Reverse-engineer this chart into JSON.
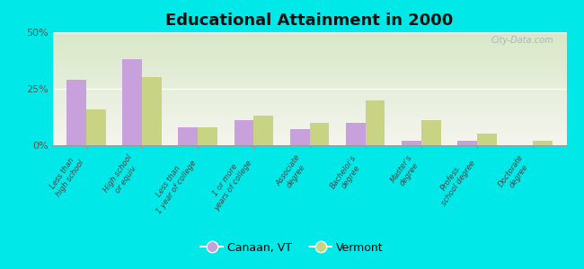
{
  "title": "Educational Attainment in 2000",
  "categories": [
    "Less than\nhigh school",
    "High school\nor equiv.",
    "Less than\n1 year of college",
    "1 or more\nyears of college",
    "Associate\ndegree",
    "Bachelor's\ndegree",
    "Master's\ndegree",
    "Profess.\nschool degree",
    "Doctorate\ndegree"
  ],
  "canaan_vt": [
    29,
    38,
    8,
    11,
    7,
    10,
    2,
    2,
    0
  ],
  "vermont": [
    16,
    30,
    8,
    13,
    10,
    20,
    11,
    5,
    2
  ],
  "canaan_color": "#c8a0dc",
  "vermont_color": "#c8d484",
  "background_outer": "#00e8e8",
  "bg_top": "#d8e8c8",
  "bg_bottom": "#f5f5ee",
  "ylim": [
    0,
    50
  ],
  "yticks": [
    0,
    25,
    50
  ],
  "ytick_labels": [
    "0%",
    "25%",
    "50%"
  ],
  "watermark": "City-Data.com",
  "legend_canaan": "Canaan, VT",
  "legend_vermont": "Vermont",
  "bar_width": 0.35
}
